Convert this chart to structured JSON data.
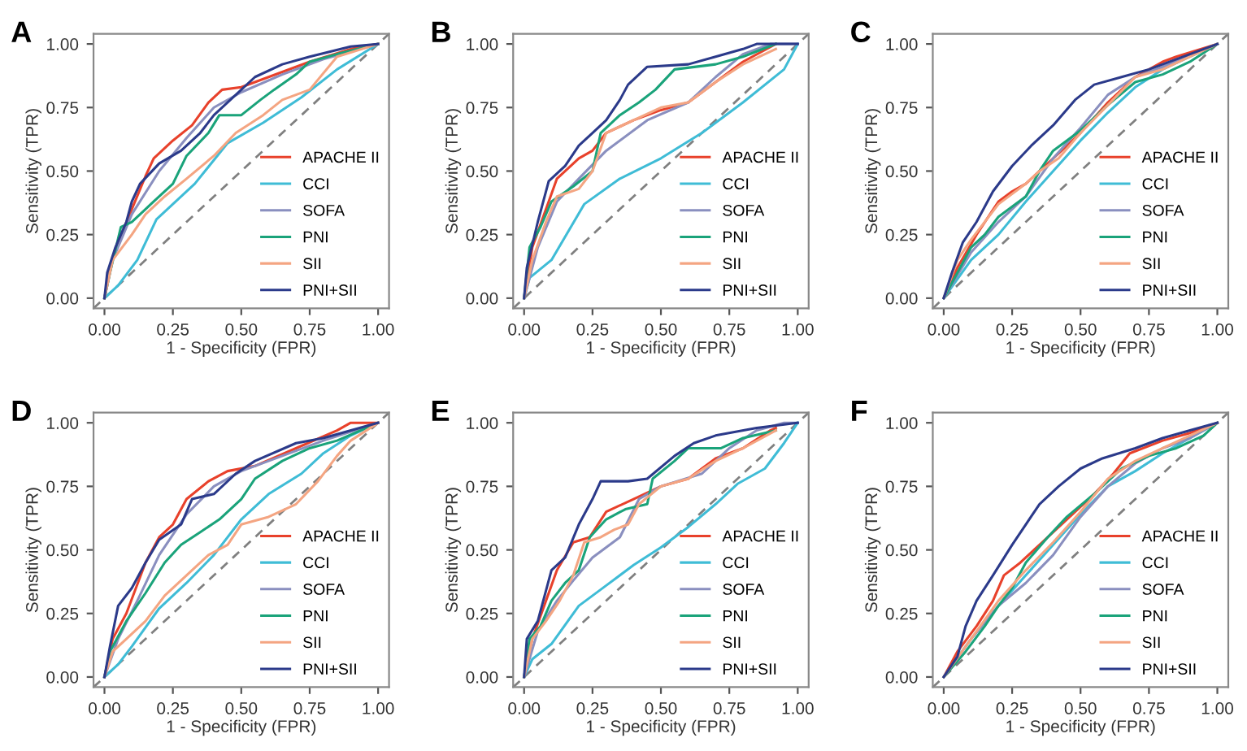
{
  "chart_data": [
    {
      "type": "line",
      "title": "A",
      "xlabel": "1 - Specificity (FPR)",
      "ylabel": "Sensitivity (TPR)",
      "xlim": [
        -0.04,
        1.04
      ],
      "ylim": [
        -0.04,
        1.04
      ],
      "xticks": [
        {
          "value": 0,
          "label": "0.00"
        },
        {
          "value": 0.25,
          "label": "0.25"
        },
        {
          "value": 0.5,
          "label": "0.50"
        },
        {
          "value": 0.75,
          "label": "0.75"
        },
        {
          "value": 1,
          "label": "1.00"
        }
      ],
      "yticks": [
        {
          "value": 0,
          "label": "0.00"
        },
        {
          "value": 0.25,
          "label": "0.25"
        },
        {
          "value": 0.5,
          "label": "0.50"
        },
        {
          "value": 0.75,
          "label": "0.75"
        },
        {
          "value": 1,
          "label": "1.00"
        }
      ],
      "grid": false,
      "legend": "bottom right",
      "series": [
        {
          "name": "APACHE II",
          "color": "#e8412b",
          "x": [
            0,
            0.02,
            0.05,
            0.1,
            0.15,
            0.18,
            0.25,
            0.32,
            0.38,
            0.43,
            0.5,
            0.6,
            0.75,
            0.9,
            1
          ],
          "values": [
            0,
            0.12,
            0.22,
            0.35,
            0.48,
            0.55,
            0.62,
            0.68,
            0.77,
            0.82,
            0.83,
            0.87,
            0.93,
            0.98,
            1
          ]
        },
        {
          "name": "CCI",
          "color": "#3fbcd6",
          "x": [
            0,
            0.05,
            0.12,
            0.19,
            0.33,
            0.45,
            0.58,
            0.72,
            0.85,
            1
          ],
          "values": [
            0,
            0.05,
            0.15,
            0.31,
            0.45,
            0.61,
            0.69,
            0.79,
            0.9,
            1
          ]
        },
        {
          "name": "SOFA",
          "color": "#8a8fbf",
          "x": [
            0,
            0.03,
            0.1,
            0.2,
            0.3,
            0.4,
            0.5,
            0.65,
            0.8,
            1
          ],
          "values": [
            0,
            0.15,
            0.33,
            0.5,
            0.63,
            0.75,
            0.81,
            0.88,
            0.94,
            1
          ]
        },
        {
          "name": "PNI",
          "color": "#1aa37a",
          "x": [
            0,
            0.02,
            0.06,
            0.1,
            0.18,
            0.25,
            0.3,
            0.38,
            0.42,
            0.5,
            0.57,
            0.62,
            0.7,
            0.75,
            0.85,
            1
          ],
          "values": [
            0,
            0.1,
            0.28,
            0.3,
            0.38,
            0.45,
            0.56,
            0.65,
            0.72,
            0.72,
            0.78,
            0.82,
            0.88,
            0.93,
            0.96,
            1
          ]
        },
        {
          "name": "SII",
          "color": "#f4a582",
          "x": [
            0,
            0.03,
            0.1,
            0.15,
            0.22,
            0.3,
            0.4,
            0.48,
            0.58,
            0.65,
            0.75,
            0.85,
            1
          ],
          "values": [
            0,
            0.15,
            0.25,
            0.33,
            0.4,
            0.47,
            0.56,
            0.65,
            0.72,
            0.78,
            0.82,
            0.95,
            1
          ]
        },
        {
          "name": "PNI+SII",
          "color": "#2b3a8a",
          "x": [
            0,
            0.01,
            0.04,
            0.08,
            0.1,
            0.13,
            0.2,
            0.28,
            0.35,
            0.4,
            0.48,
            0.55,
            0.65,
            0.75,
            0.9,
            1
          ],
          "values": [
            0,
            0.1,
            0.2,
            0.3,
            0.38,
            0.45,
            0.53,
            0.58,
            0.65,
            0.72,
            0.8,
            0.87,
            0.92,
            0.95,
            0.99,
            1
          ]
        },
        {
          "color": "#808080",
          "line_style": "dashed",
          "x": [
            -0.04,
            1.04
          ],
          "values": [
            -0.04,
            1.04
          ]
        }
      ]
    },
    {
      "type": "line",
      "title": "B",
      "xlabel": "1 - Specificity (FPR)",
      "ylabel": "Sensitivity (TPR)",
      "xlim": [
        -0.04,
        1.04
      ],
      "ylim": [
        -0.04,
        1.04
      ],
      "xticks": [
        {
          "value": 0,
          "label": "0.00"
        },
        {
          "value": 0.25,
          "label": "0.25"
        },
        {
          "value": 0.5,
          "label": "0.50"
        },
        {
          "value": 0.75,
          "label": "0.75"
        },
        {
          "value": 1,
          "label": "1.00"
        }
      ],
      "yticks": [
        {
          "value": 0,
          "label": "0.00"
        },
        {
          "value": 0.25,
          "label": "0.25"
        },
        {
          "value": 0.5,
          "label": "0.50"
        },
        {
          "value": 0.75,
          "label": "0.75"
        },
        {
          "value": 1,
          "label": "1.00"
        }
      ],
      "grid": false,
      "legend": "bottom right",
      "series": [
        {
          "name": "APACHE II",
          "color": "#e8412b",
          "x": [
            0,
            0.03,
            0.08,
            0.12,
            0.2,
            0.25,
            0.3,
            0.4,
            0.5,
            0.6,
            0.7,
            0.8,
            0.92
          ],
          "values": [
            0,
            0.2,
            0.35,
            0.47,
            0.55,
            0.58,
            0.65,
            0.7,
            0.74,
            0.77,
            0.85,
            0.93,
            1
          ]
        },
        {
          "name": "CCI",
          "color": "#3fbcd6",
          "x": [
            0,
            0.02,
            0.1,
            0.22,
            0.35,
            0.5,
            0.65,
            0.8,
            0.95,
            1
          ],
          "values": [
            0,
            0.08,
            0.15,
            0.37,
            0.47,
            0.55,
            0.65,
            0.77,
            0.9,
            1
          ]
        },
        {
          "name": "SOFA",
          "color": "#8a8fbf",
          "x": [
            0,
            0.05,
            0.12,
            0.2,
            0.3,
            0.45,
            0.6,
            0.7,
            0.8,
            0.9,
            1
          ],
          "values": [
            0,
            0.2,
            0.38,
            0.47,
            0.58,
            0.7,
            0.77,
            0.87,
            0.96,
            1,
            1
          ]
        },
        {
          "name": "PNI",
          "color": "#1aa37a",
          "x": [
            0,
            0.02,
            0.06,
            0.1,
            0.18,
            0.25,
            0.28,
            0.35,
            0.42,
            0.48,
            0.55,
            0.7,
            0.8,
            0.92
          ],
          "values": [
            0,
            0.2,
            0.28,
            0.38,
            0.44,
            0.5,
            0.65,
            0.72,
            0.77,
            0.82,
            0.9,
            0.92,
            0.95,
            1
          ]
        },
        {
          "name": "SII",
          "color": "#f4a582",
          "x": [
            0,
            0.03,
            0.08,
            0.12,
            0.2,
            0.25,
            0.3,
            0.4,
            0.5,
            0.6,
            0.7,
            0.8,
            0.92
          ],
          "values": [
            0,
            0.15,
            0.3,
            0.4,
            0.43,
            0.5,
            0.65,
            0.7,
            0.75,
            0.77,
            0.85,
            0.92,
            0.98
          ]
        },
        {
          "name": "PNI+SII",
          "color": "#2b3a8a",
          "x": [
            0,
            0.01,
            0.05,
            0.09,
            0.15,
            0.2,
            0.25,
            0.3,
            0.35,
            0.38,
            0.45,
            0.6,
            0.7,
            0.8,
            0.85,
            1
          ],
          "values": [
            0,
            0.12,
            0.3,
            0.46,
            0.52,
            0.6,
            0.65,
            0.7,
            0.78,
            0.84,
            0.91,
            0.92,
            0.95,
            0.98,
            1,
            1
          ]
        },
        {
          "color": "#808080",
          "line_style": "dashed",
          "x": [
            -0.04,
            1.04
          ],
          "values": [
            -0.04,
            1.04
          ]
        }
      ]
    },
    {
      "type": "line",
      "title": "C",
      "xlabel": "1 - Specificity (FPR)",
      "ylabel": "Sensitivity (TPR)",
      "xlim": [
        -0.04,
        1.04
      ],
      "ylim": [
        -0.04,
        1.04
      ],
      "xticks": [
        {
          "value": 0,
          "label": "0.00"
        },
        {
          "value": 0.25,
          "label": "0.25"
        },
        {
          "value": 0.5,
          "label": "0.50"
        },
        {
          "value": 0.75,
          "label": "0.75"
        },
        {
          "value": 1,
          "label": "1.00"
        }
      ],
      "yticks": [
        {
          "value": 0,
          "label": "0.00"
        },
        {
          "value": 0.25,
          "label": "0.25"
        },
        {
          "value": 0.5,
          "label": "0.50"
        },
        {
          "value": 0.75,
          "label": "0.75"
        },
        {
          "value": 1,
          "label": "1.00"
        }
      ],
      "grid": false,
      "legend": "bottom right",
      "series": [
        {
          "name": "APACHE II",
          "color": "#e8412b",
          "x": [
            0,
            0.05,
            0.12,
            0.2,
            0.25,
            0.3,
            0.4,
            0.5,
            0.6,
            0.7,
            0.8,
            0.85,
            1
          ],
          "values": [
            0,
            0.12,
            0.25,
            0.38,
            0.42,
            0.45,
            0.55,
            0.65,
            0.77,
            0.87,
            0.93,
            0.95,
            1
          ]
        },
        {
          "name": "CCI",
          "color": "#3fbcd6",
          "x": [
            0,
            0.1,
            0.2,
            0.3,
            0.4,
            0.5,
            0.6,
            0.7,
            0.8,
            0.9,
            1
          ],
          "values": [
            0,
            0.15,
            0.25,
            0.38,
            0.5,
            0.62,
            0.73,
            0.83,
            0.9,
            0.95,
            1
          ]
        },
        {
          "name": "SOFA",
          "color": "#8a8fbf",
          "x": [
            0,
            0.1,
            0.2,
            0.3,
            0.4,
            0.5,
            0.6,
            0.7,
            0.8,
            1
          ],
          "values": [
            0,
            0.18,
            0.3,
            0.4,
            0.55,
            0.67,
            0.8,
            0.87,
            0.91,
            1
          ]
        },
        {
          "name": "PNI",
          "color": "#1aa37a",
          "x": [
            0,
            0.05,
            0.1,
            0.15,
            0.2,
            0.3,
            0.35,
            0.4,
            0.5,
            0.6,
            0.7,
            0.8,
            0.9,
            1
          ],
          "values": [
            0,
            0.1,
            0.2,
            0.25,
            0.32,
            0.4,
            0.5,
            0.58,
            0.66,
            0.76,
            0.85,
            0.88,
            0.93,
            1
          ]
        },
        {
          "name": "SII",
          "color": "#f4a582",
          "x": [
            0,
            0.05,
            0.1,
            0.2,
            0.3,
            0.35,
            0.42,
            0.5,
            0.6,
            0.7,
            0.8,
            0.9,
            1
          ],
          "values": [
            0,
            0.15,
            0.23,
            0.37,
            0.45,
            0.5,
            0.55,
            0.65,
            0.76,
            0.87,
            0.9,
            0.95,
            1
          ]
        },
        {
          "name": "PNI+SII",
          "color": "#2b3a8a",
          "x": [
            0,
            0.03,
            0.07,
            0.12,
            0.18,
            0.25,
            0.32,
            0.4,
            0.48,
            0.55,
            0.65,
            0.75,
            0.85,
            1
          ],
          "values": [
            0,
            0.1,
            0.22,
            0.3,
            0.42,
            0.52,
            0.6,
            0.68,
            0.78,
            0.84,
            0.87,
            0.9,
            0.94,
            1
          ]
        },
        {
          "color": "#808080",
          "line_style": "dashed",
          "x": [
            -0.04,
            1.04
          ],
          "values": [
            -0.04,
            1.04
          ]
        }
      ]
    },
    {
      "type": "line",
      "title": "D",
      "xlabel": "1 - Specificity (FPR)",
      "ylabel": "Sensitivity (TPR)",
      "xlim": [
        -0.04,
        1.04
      ],
      "ylim": [
        -0.04,
        1.04
      ],
      "xticks": [
        {
          "value": 0,
          "label": "0.00"
        },
        {
          "value": 0.25,
          "label": "0.25"
        },
        {
          "value": 0.5,
          "label": "0.50"
        },
        {
          "value": 0.75,
          "label": "0.75"
        },
        {
          "value": 1,
          "label": "1.00"
        }
      ],
      "yticks": [
        {
          "value": 0,
          "label": "0.00"
        },
        {
          "value": 0.25,
          "label": "0.25"
        },
        {
          "value": 0.5,
          "label": "0.50"
        },
        {
          "value": 0.75,
          "label": "0.75"
        },
        {
          "value": 1,
          "label": "1.00"
        }
      ],
      "grid": false,
      "legend": "bottom right",
      "series": [
        {
          "name": "APACHE II",
          "color": "#e8412b",
          "x": [
            0,
            0.03,
            0.08,
            0.15,
            0.2,
            0.25,
            0.3,
            0.38,
            0.45,
            0.55,
            0.7,
            0.85,
            0.9,
            1
          ],
          "values": [
            0,
            0.15,
            0.25,
            0.45,
            0.55,
            0.6,
            0.7,
            0.77,
            0.81,
            0.83,
            0.9,
            0.97,
            1,
            1
          ]
        },
        {
          "name": "CCI",
          "color": "#3fbcd6",
          "x": [
            0,
            0.05,
            0.1,
            0.2,
            0.3,
            0.4,
            0.5,
            0.6,
            0.72,
            0.8,
            0.9,
            1
          ],
          "values": [
            0,
            0.05,
            0.12,
            0.27,
            0.37,
            0.48,
            0.62,
            0.72,
            0.8,
            0.88,
            0.95,
            1
          ]
        },
        {
          "name": "SOFA",
          "color": "#8a8fbf",
          "x": [
            0,
            0.05,
            0.12,
            0.2,
            0.3,
            0.4,
            0.5,
            0.65,
            0.8,
            1
          ],
          "values": [
            0,
            0.15,
            0.3,
            0.48,
            0.64,
            0.75,
            0.81,
            0.87,
            0.93,
            1
          ]
        },
        {
          "name": "PNI",
          "color": "#1aa37a",
          "x": [
            0,
            0.02,
            0.08,
            0.15,
            0.22,
            0.28,
            0.35,
            0.42,
            0.5,
            0.55,
            0.65,
            0.75,
            0.85,
            1
          ],
          "values": [
            0,
            0.1,
            0.22,
            0.33,
            0.45,
            0.52,
            0.57,
            0.62,
            0.7,
            0.78,
            0.85,
            0.9,
            0.93,
            1
          ]
        },
        {
          "name": "SII",
          "color": "#f4a582",
          "x": [
            0,
            0.03,
            0.08,
            0.15,
            0.22,
            0.3,
            0.38,
            0.45,
            0.5,
            0.6,
            0.7,
            0.78,
            0.85,
            0.9,
            1
          ],
          "values": [
            0,
            0.1,
            0.15,
            0.22,
            0.32,
            0.4,
            0.48,
            0.52,
            0.6,
            0.63,
            0.68,
            0.77,
            0.87,
            0.93,
            1
          ]
        },
        {
          "name": "PNI+SII",
          "color": "#2b3a8a",
          "x": [
            0,
            0.02,
            0.05,
            0.1,
            0.15,
            0.2,
            0.28,
            0.32,
            0.4,
            0.48,
            0.55,
            0.7,
            0.8,
            1
          ],
          "values": [
            0,
            0.12,
            0.28,
            0.35,
            0.45,
            0.54,
            0.6,
            0.7,
            0.72,
            0.8,
            0.85,
            0.92,
            0.94,
            1
          ]
        },
        {
          "color": "#808080",
          "line_style": "dashed",
          "x": [
            -0.04,
            1.04
          ],
          "values": [
            -0.04,
            1.04
          ]
        }
      ]
    },
    {
      "type": "line",
      "title": "E",
      "xlabel": "1 - Specificity (FPR)",
      "ylabel": "Sensitivity (TPR)",
      "xlim": [
        -0.04,
        1.04
      ],
      "ylim": [
        -0.04,
        1.04
      ],
      "xticks": [
        {
          "value": 0,
          "label": "0.00"
        },
        {
          "value": 0.25,
          "label": "0.25"
        },
        {
          "value": 0.5,
          "label": "0.50"
        },
        {
          "value": 0.75,
          "label": "0.75"
        },
        {
          "value": 1,
          "label": "1.00"
        }
      ],
      "yticks": [
        {
          "value": 0,
          "label": "0.00"
        },
        {
          "value": 0.25,
          "label": "0.25"
        },
        {
          "value": 0.5,
          "label": "0.50"
        },
        {
          "value": 0.75,
          "label": "0.75"
        },
        {
          "value": 1,
          "label": "1.00"
        }
      ],
      "grid": false,
      "legend": "bottom right",
      "series": [
        {
          "name": "APACHE II",
          "color": "#e8412b",
          "x": [
            0,
            0.03,
            0.08,
            0.12,
            0.18,
            0.24,
            0.3,
            0.4,
            0.5,
            0.6,
            0.7,
            0.8,
            0.9,
            0.92
          ],
          "values": [
            0,
            0.15,
            0.3,
            0.42,
            0.53,
            0.55,
            0.65,
            0.7,
            0.75,
            0.78,
            0.86,
            0.9,
            0.97,
            0.98
          ]
        },
        {
          "name": "CCI",
          "color": "#3fbcd6",
          "x": [
            0,
            0.03,
            0.1,
            0.2,
            0.3,
            0.4,
            0.5,
            0.6,
            0.7,
            0.78,
            0.88,
            0.95,
            1
          ],
          "values": [
            0,
            0.07,
            0.13,
            0.28,
            0.36,
            0.44,
            0.51,
            0.59,
            0.68,
            0.76,
            0.82,
            0.92,
            1
          ]
        },
        {
          "name": "SOFA",
          "color": "#8a8fbf",
          "x": [
            0,
            0.05,
            0.12,
            0.18,
            0.25,
            0.35,
            0.42,
            0.5,
            0.65,
            0.75,
            0.85,
            0.95,
            1
          ],
          "values": [
            0,
            0.18,
            0.3,
            0.38,
            0.47,
            0.55,
            0.7,
            0.75,
            0.8,
            0.9,
            0.97,
            1,
            1
          ]
        },
        {
          "name": "PNI",
          "color": "#1aa37a",
          "x": [
            0,
            0.02,
            0.06,
            0.1,
            0.15,
            0.2,
            0.24,
            0.3,
            0.37,
            0.45,
            0.47,
            0.55,
            0.6,
            0.72,
            0.8,
            0.92
          ],
          "values": [
            0,
            0.15,
            0.2,
            0.3,
            0.37,
            0.42,
            0.55,
            0.62,
            0.66,
            0.68,
            0.78,
            0.85,
            0.9,
            0.9,
            0.94,
            0.97
          ]
        },
        {
          "name": "SII",
          "color": "#f4a582",
          "x": [
            0,
            0.03,
            0.08,
            0.13,
            0.18,
            0.22,
            0.28,
            0.33,
            0.38,
            0.42,
            0.5,
            0.6,
            0.7,
            0.8,
            0.92
          ],
          "values": [
            0,
            0.15,
            0.22,
            0.3,
            0.4,
            0.53,
            0.55,
            0.58,
            0.6,
            0.68,
            0.75,
            0.78,
            0.85,
            0.9,
            0.97
          ]
        },
        {
          "name": "PNI+SII",
          "color": "#2b3a8a",
          "x": [
            0,
            0.01,
            0.05,
            0.1,
            0.15,
            0.2,
            0.25,
            0.28,
            0.38,
            0.45,
            0.55,
            0.62,
            0.7,
            0.85,
            1
          ],
          "values": [
            0,
            0.15,
            0.22,
            0.42,
            0.47,
            0.6,
            0.7,
            0.77,
            0.77,
            0.78,
            0.87,
            0.92,
            0.95,
            0.98,
            1
          ]
        },
        {
          "color": "#808080",
          "line_style": "dashed",
          "x": [
            -0.04,
            1.04
          ],
          "values": [
            -0.04,
            1.04
          ]
        }
      ]
    },
    {
      "type": "line",
      "title": "F",
      "xlabel": "1 - Specificity (FPR)",
      "ylabel": "Sensitivity (TPR)",
      "xlim": [
        -0.04,
        1.04
      ],
      "ylim": [
        -0.04,
        1.04
      ],
      "xticks": [
        {
          "value": 0,
          "label": "0.00"
        },
        {
          "value": 0.25,
          "label": "0.25"
        },
        {
          "value": 0.5,
          "label": "0.50"
        },
        {
          "value": 0.75,
          "label": "0.75"
        },
        {
          "value": 1,
          "label": "1.00"
        }
      ],
      "yticks": [
        {
          "value": 0,
          "label": "0.00"
        },
        {
          "value": 0.25,
          "label": "0.25"
        },
        {
          "value": 0.5,
          "label": "0.50"
        },
        {
          "value": 0.75,
          "label": "0.75"
        },
        {
          "value": 1,
          "label": "1.00"
        }
      ],
      "grid": false,
      "legend": "bottom right",
      "series": [
        {
          "name": "APACHE II",
          "color": "#e8412b",
          "x": [
            0,
            0.05,
            0.12,
            0.18,
            0.22,
            0.28,
            0.35,
            0.45,
            0.55,
            0.62,
            0.68,
            0.8,
            0.9,
            1
          ],
          "values": [
            0,
            0.1,
            0.2,
            0.3,
            0.4,
            0.45,
            0.52,
            0.62,
            0.72,
            0.8,
            0.88,
            0.93,
            0.96,
            1
          ]
        },
        {
          "name": "CCI",
          "color": "#3fbcd6",
          "x": [
            0,
            0.1,
            0.2,
            0.3,
            0.4,
            0.5,
            0.6,
            0.7,
            0.8,
            0.9,
            1
          ],
          "values": [
            0,
            0.15,
            0.28,
            0.4,
            0.52,
            0.64,
            0.75,
            0.81,
            0.88,
            0.94,
            1
          ]
        },
        {
          "name": "SOFA",
          "color": "#8a8fbf",
          "x": [
            0,
            0.1,
            0.2,
            0.3,
            0.4,
            0.5,
            0.6,
            0.7,
            0.8,
            0.9,
            1
          ],
          "values": [
            0,
            0.15,
            0.28,
            0.37,
            0.48,
            0.63,
            0.75,
            0.84,
            0.9,
            0.94,
            1
          ]
        },
        {
          "name": "PNI",
          "color": "#1aa37a",
          "x": [
            0,
            0.08,
            0.15,
            0.2,
            0.25,
            0.3,
            0.38,
            0.45,
            0.55,
            0.65,
            0.75,
            0.85,
            0.95,
            1
          ],
          "values": [
            0,
            0.1,
            0.2,
            0.28,
            0.35,
            0.45,
            0.55,
            0.63,
            0.72,
            0.82,
            0.87,
            0.9,
            0.95,
            1
          ]
        },
        {
          "name": "SII",
          "color": "#f4a582",
          "x": [
            0,
            0.1,
            0.2,
            0.3,
            0.4,
            0.5,
            0.6,
            0.7,
            0.8,
            0.9,
            1
          ],
          "values": [
            0,
            0.15,
            0.3,
            0.42,
            0.53,
            0.65,
            0.78,
            0.85,
            0.9,
            0.95,
            1
          ]
        },
        {
          "name": "PNI+SII",
          "color": "#2b3a8a",
          "x": [
            0,
            0.05,
            0.08,
            0.12,
            0.18,
            0.25,
            0.3,
            0.35,
            0.42,
            0.5,
            0.58,
            0.7,
            0.8,
            0.9,
            1
          ],
          "values": [
            0,
            0.08,
            0.2,
            0.3,
            0.4,
            0.52,
            0.6,
            0.68,
            0.75,
            0.82,
            0.86,
            0.9,
            0.94,
            0.97,
            1
          ]
        },
        {
          "color": "#808080",
          "line_style": "dashed",
          "x": [
            -0.04,
            1.04
          ],
          "values": [
            -0.04,
            1.04
          ]
        }
      ]
    }
  ]
}
